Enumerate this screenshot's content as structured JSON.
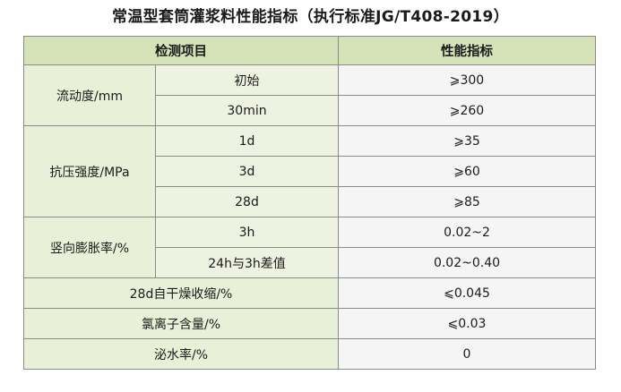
{
  "title": "常温型套筒灌浆料性能指标（执行标准JG/T408-2019）",
  "headers": {
    "item": "检测项目",
    "value": "性能指标"
  },
  "groups": {
    "fluidity": {
      "name": "流动度/mm",
      "rows": [
        {
          "sub": "初始",
          "value": "⩾300"
        },
        {
          "sub": "30min",
          "value": "⩾260"
        }
      ]
    },
    "compressive": {
      "name": "抗压强度/MPa",
      "rows": [
        {
          "sub": "1d",
          "value": "⩾35"
        },
        {
          "sub": "3d",
          "value": "⩾60"
        },
        {
          "sub": "28d",
          "value": "⩾85"
        }
      ]
    },
    "expansion": {
      "name": "竖向膨胀率/%",
      "rows": [
        {
          "sub": "3h",
          "value": "0.02~2"
        },
        {
          "sub": "24h与3h差值",
          "value": "0.02~0.40"
        }
      ]
    }
  },
  "single_rows": [
    {
      "name": "28d自干燥收缩/%",
      "value": "⩽0.045"
    },
    {
      "name": "氯离子含量/%",
      "value": "⩽0.03"
    },
    {
      "name": "泌水率/%",
      "value": "0"
    }
  ]
}
